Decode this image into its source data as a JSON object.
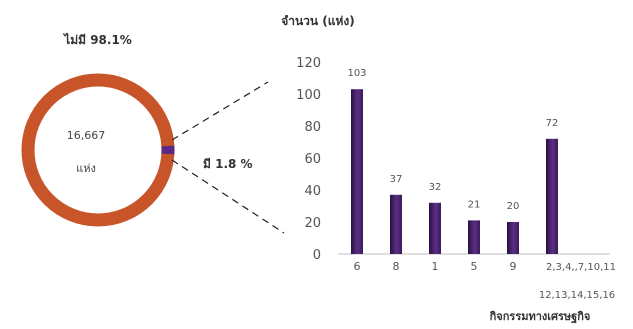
{
  "chart_data": [
    {
      "type": "pie",
      "variant": "donut",
      "center_value": "16,667",
      "center_unit": "แห่ง",
      "slices": [
        {
          "label": "ไม่มี 98.1%",
          "percent": 98.1,
          "color": "#C8552A"
        },
        {
          "label": "มี 1.8 %",
          "percent": 1.8,
          "color": "#5B2A86"
        }
      ]
    },
    {
      "type": "bar",
      "title": "จำนวน (แห่ง)",
      "xlabel": "กิจกรรมทางเศรษฐกิจ",
      "categories": [
        "6",
        "8",
        "1",
        "5",
        "9",
        "2,3,4,,7,10,11"
      ],
      "category_note": "12,13,14,15,16",
      "values": [
        103,
        37,
        32,
        21,
        20,
        72
      ],
      "ylim": [
        0,
        120
      ],
      "yticks": [
        0,
        20,
        40,
        60,
        80,
        100,
        120
      ],
      "grid": false,
      "bar_color": "#4B2A6E"
    }
  ]
}
